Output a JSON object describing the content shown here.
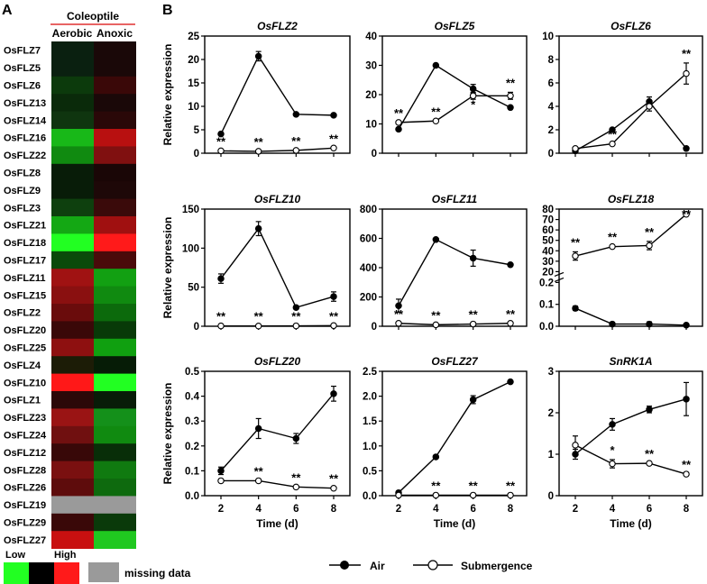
{
  "panel_a": {
    "label": "A",
    "tissue": "Coleoptile",
    "conditions": [
      "Aerobic",
      "Anoxic"
    ],
    "genes": [
      "OsFLZ7",
      "OsFLZ5",
      "OsFLZ6",
      "OsFLZ13",
      "OsFLZ14",
      "OsFLZ16",
      "OsFLZ22",
      "OsFLZ8",
      "OsFLZ9",
      "OsFLZ3",
      "OsFLZ21",
      "OsFLZ18",
      "OsFLZ17",
      "OsFLZ11",
      "OsFLZ15",
      "OsFLZ2",
      "OsFLZ20",
      "OsFLZ25",
      "OsFLZ4",
      "OsFLZ10",
      "OsFLZ1",
      "OsFLZ23",
      "OsFLZ24",
      "OsFLZ12",
      "OsFLZ28",
      "OsFLZ26",
      "OsFLZ19",
      "OsFLZ29",
      "OsFLZ27"
    ],
    "cells": [
      [
        "#0a2010",
        "#1a0808"
      ],
      [
        "#0a2010",
        "#1a0808"
      ],
      [
        "#0c3a0c",
        "#3a0808"
      ],
      [
        "#0a2a0a",
        "#1a0808"
      ],
      [
        "#0f350f",
        "#2a0808"
      ],
      [
        "#18b818",
        "#b81010"
      ],
      [
        "#108a10",
        "#801010"
      ],
      [
        "#081c08",
        "#1a0606"
      ],
      [
        "#081c08",
        "#1e0808"
      ],
      [
        "#0e400e",
        "#3a0a0a"
      ],
      [
        "#14a814",
        "#a01010"
      ],
      [
        "#22ff22",
        "#ff1a1a"
      ],
      [
        "#0a4a0a",
        "#4a0a0a"
      ],
      [
        "#a01212",
        "#12a012"
      ],
      [
        "#8a1010",
        "#108a10"
      ],
      [
        "#6a0c0c",
        "#0c6a0c"
      ],
      [
        "#3a0808",
        "#083a08"
      ],
      [
        "#8e1010",
        "#10a010"
      ],
      [
        "#1c1c06",
        "#061c06"
      ],
      [
        "#ff1818",
        "#22ff22"
      ],
      [
        "#2c0808",
        "#081c08"
      ],
      [
        "#9a1414",
        "#14901a"
      ],
      [
        "#701010",
        "#108a10"
      ],
      [
        "#380808",
        "#082e08"
      ],
      [
        "#7a1010",
        "#107a10"
      ],
      [
        "#5e0c0c",
        "#0e6a0e"
      ],
      [
        "missing",
        "missing"
      ],
      [
        "#3a0808",
        "#0a3a0a"
      ],
      [
        "#c81010",
        "#20c820"
      ]
    ],
    "legend": {
      "low": "Low",
      "high": "High",
      "missing": "missing data"
    },
    "colors": {
      "low": "#22ff22",
      "mid": "#000000",
      "high": "#ff1a1a",
      "missing": "#9a9a9a"
    }
  },
  "panel_b": {
    "label": "B",
    "ylabel": "Relative expression",
    "xlabel": "Time (d)",
    "legend": {
      "air": "Air",
      "submergence": "Submergence"
    }
  },
  "chart_data": [
    {
      "type": "line",
      "title": "OsFLZ2",
      "x": [
        2,
        4,
        6,
        8
      ],
      "ylim": [
        0,
        25
      ],
      "yticks": [
        "0",
        "5",
        "10",
        "15",
        "20",
        "25"
      ],
      "series": [
        {
          "name": "Air",
          "values": [
            4.1,
            20.7,
            8.3,
            8.1
          ],
          "err": [
            0,
            1,
            0,
            0
          ]
        },
        {
          "name": "Submergence",
          "values": [
            0.5,
            0.4,
            0.6,
            1.1
          ],
          "err": [
            0,
            0,
            0,
            0
          ]
        }
      ],
      "annotations": [
        {
          "x": 2,
          "text": "**"
        },
        {
          "x": 4,
          "text": "**"
        },
        {
          "x": 6,
          "text": "**"
        },
        {
          "x": 8,
          "text": "**"
        }
      ]
    },
    {
      "type": "line",
      "title": "OsFLZ5",
      "x": [
        2,
        4,
        6,
        8
      ],
      "ylim": [
        0,
        40
      ],
      "yticks": [
        "0",
        "10",
        "20",
        "30",
        "40"
      ],
      "series": [
        {
          "name": "Air",
          "values": [
            8.2,
            30,
            22,
            15.6
          ],
          "err": [
            0,
            0,
            1.5,
            0
          ]
        },
        {
          "name": "Submergence",
          "values": [
            10.5,
            11,
            19.6,
            19.6
          ],
          "err": [
            0,
            0,
            1.2,
            1.2
          ]
        }
      ],
      "annotations": [
        {
          "x": 2,
          "text": "**"
        },
        {
          "x": 4,
          "text": "**"
        },
        {
          "x": 6,
          "text": "*"
        },
        {
          "x": 8,
          "text": "**"
        }
      ]
    },
    {
      "type": "line",
      "title": "OsFLZ6",
      "x": [
        2,
        4,
        6,
        8
      ],
      "ylim": [
        0,
        10
      ],
      "yticks": [
        "0",
        "2",
        "4",
        "6",
        "8",
        "10"
      ],
      "series": [
        {
          "name": "Air",
          "values": [
            0.2,
            2,
            4.4,
            0.4
          ],
          "err": [
            0,
            0,
            0.4,
            0
          ]
        },
        {
          "name": "Submergence",
          "values": [
            0.4,
            0.8,
            4,
            6.8
          ],
          "err": [
            0,
            0,
            0.4,
            0.9
          ]
        }
      ],
      "annotations": [
        {
          "x": 4,
          "text": "**"
        },
        {
          "x": 8,
          "text": "**"
        }
      ]
    },
    {
      "type": "line",
      "title": "OsFLZ10",
      "x": [
        2,
        4,
        6,
        8
      ],
      "ylim": [
        0,
        150
      ],
      "yticks": [
        "0",
        "50",
        "100",
        "150"
      ],
      "series": [
        {
          "name": "Air",
          "values": [
            61,
            125,
            24,
            38
          ],
          "err": [
            6,
            9,
            2,
            6
          ]
        },
        {
          "name": "Submergence",
          "values": [
            0.4,
            0.3,
            0.5,
            0.8
          ],
          "err": [
            0,
            0,
            0,
            0
          ]
        }
      ],
      "annotations": [
        {
          "x": 2,
          "text": "**"
        },
        {
          "x": 4,
          "text": "**"
        },
        {
          "x": 6,
          "text": "**"
        },
        {
          "x": 8,
          "text": "**"
        }
      ]
    },
    {
      "type": "line",
      "title": "OsFLZ11",
      "x": [
        2,
        4,
        6,
        8
      ],
      "ylim": [
        0,
        800
      ],
      "yticks": [
        "0",
        "200",
        "400",
        "600",
        "800"
      ],
      "series": [
        {
          "name": "Air",
          "values": [
            140,
            592,
            465,
            420
          ],
          "err": [
            45,
            0,
            55,
            0
          ]
        },
        {
          "name": "Submergence",
          "values": [
            20,
            10,
            15,
            20
          ],
          "err": [
            0,
            0,
            0,
            0
          ]
        }
      ],
      "annotations": [
        {
          "x": 2,
          "text": "**"
        },
        {
          "x": 4,
          "text": "**"
        },
        {
          "x": 6,
          "text": "**"
        },
        {
          "x": 8,
          "text": "**"
        }
      ]
    },
    {
      "type": "line",
      "title": "OsFLZ18",
      "x": [
        2,
        4,
        6,
        8
      ],
      "ylim": [
        0,
        80
      ],
      "yticks": [
        "0.0",
        "0.1",
        "0.2",
        "20",
        "30",
        "40",
        "50",
        "60",
        "70",
        "80"
      ],
      "broken_axis": {
        "lower": [
          0,
          0.2
        ],
        "upper": [
          20,
          80
        ]
      },
      "series": [
        {
          "name": "Air",
          "values": [
            0.082,
            0.01,
            0.01,
            0.005
          ],
          "err": [
            0.01,
            0,
            0.01,
            0
          ]
        },
        {
          "name": "Submergence",
          "values": [
            35,
            44,
            45,
            75
          ],
          "err": [
            4,
            0,
            4,
            0
          ]
        }
      ],
      "annotations": [
        {
          "x": 2,
          "text": "**"
        },
        {
          "x": 4,
          "text": "**"
        },
        {
          "x": 6,
          "text": "**"
        },
        {
          "x": 8,
          "text": "**"
        }
      ]
    },
    {
      "type": "line",
      "title": "OsFLZ20",
      "x": [
        2,
        4,
        6,
        8
      ],
      "ylim": [
        0,
        0.5
      ],
      "yticks": [
        "0.0",
        "0.1",
        "0.2",
        "0.3",
        "0.4",
        "0.5"
      ],
      "series": [
        {
          "name": "Air",
          "values": [
            0.1,
            0.27,
            0.23,
            0.41
          ],
          "err": [
            0.015,
            0.04,
            0.02,
            0.03
          ]
        },
        {
          "name": "Submergence",
          "values": [
            0.06,
            0.06,
            0.035,
            0.03
          ],
          "err": [
            0,
            0,
            0,
            0
          ]
        }
      ],
      "annotations": [
        {
          "x": 4,
          "text": "**"
        },
        {
          "x": 6,
          "text": "**"
        },
        {
          "x": 8,
          "text": "**"
        }
      ]
    },
    {
      "type": "line",
      "title": "OsFLZ27",
      "x": [
        2,
        4,
        6,
        8
      ],
      "ylim": [
        0,
        2.5
      ],
      "yticks": [
        "0.0",
        "0.5",
        "1.0",
        "1.5",
        "2.0",
        "2.5"
      ],
      "series": [
        {
          "name": "Air",
          "values": [
            0.06,
            0.78,
            1.93,
            2.29
          ],
          "err": [
            0,
            0,
            0.08,
            0
          ]
        },
        {
          "name": "Submergence",
          "values": [
            0.01,
            0.01,
            0.01,
            0.01
          ],
          "err": [
            0,
            0,
            0,
            0
          ]
        }
      ],
      "annotations": [
        {
          "x": 4,
          "text": "**"
        },
        {
          "x": 6,
          "text": "**"
        },
        {
          "x": 8,
          "text": "**"
        }
      ]
    },
    {
      "type": "line",
      "title": "SnRK1A",
      "x": [
        2,
        4,
        6,
        8
      ],
      "ylim": [
        0,
        3
      ],
      "yticks": [
        "0",
        "1",
        "2",
        "3"
      ],
      "series": [
        {
          "name": "Air",
          "values": [
            1,
            1.72,
            2.08,
            2.33
          ],
          "err": [
            0.12,
            0.14,
            0.08,
            0.4
          ]
        },
        {
          "name": "Submergence",
          "values": [
            1.22,
            0.77,
            0.78,
            0.52
          ],
          "err": [
            0.22,
            0.1,
            0,
            0
          ]
        }
      ],
      "annotations": [
        {
          "x": 4,
          "text": "*"
        },
        {
          "x": 6,
          "text": "**"
        },
        {
          "x": 8,
          "text": "**"
        }
      ]
    }
  ]
}
